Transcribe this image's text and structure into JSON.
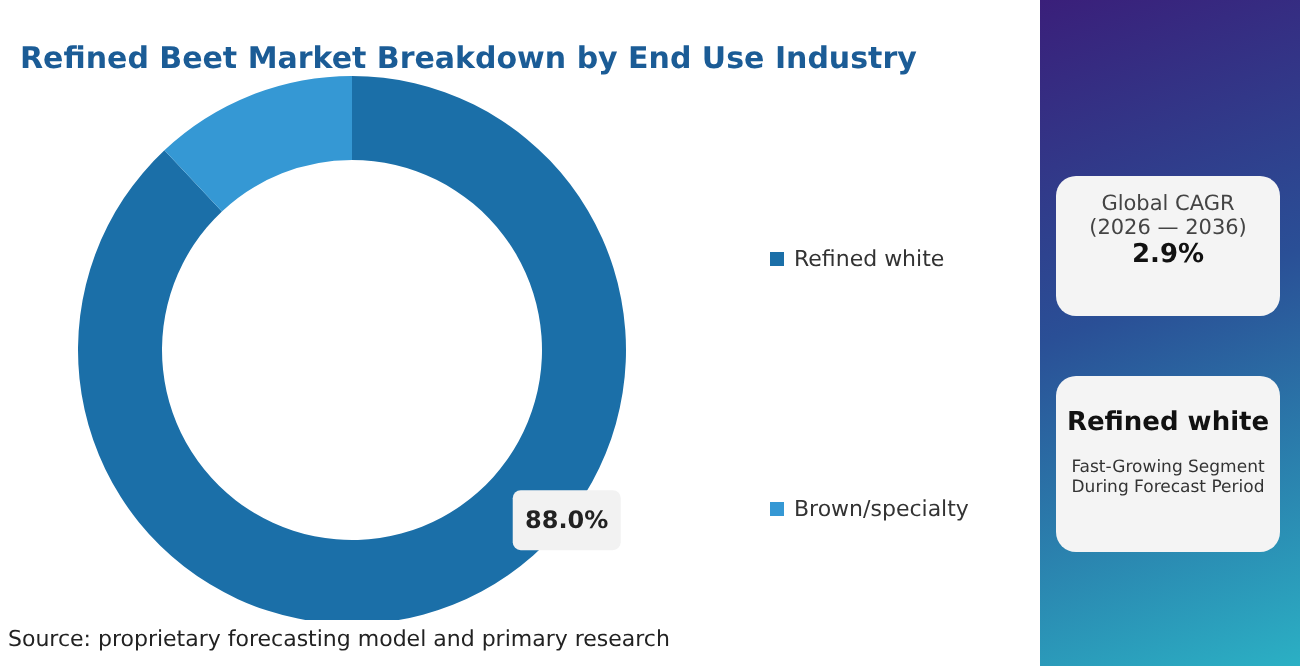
{
  "chart_data": {
    "type": "donut",
    "title": "Refined Beet Market Breakdown by End Use Industry",
    "categories": [
      "Refined white",
      "Brown/specialty"
    ],
    "values": [
      88,
      12
    ],
    "colors": [
      "#1b6fa8",
      "#3598d4"
    ],
    "value_labels": [
      "88.0%",
      null
    ],
    "legend": "right",
    "annotations": [
      "Source: proprietary forecasting model and primary research",
      "Global CAGR",
      "(2026 — 2036)",
      "2.9%",
      "Refined white",
      "Fast-Growing Segment",
      "During Forecast Period"
    ]
  }
}
